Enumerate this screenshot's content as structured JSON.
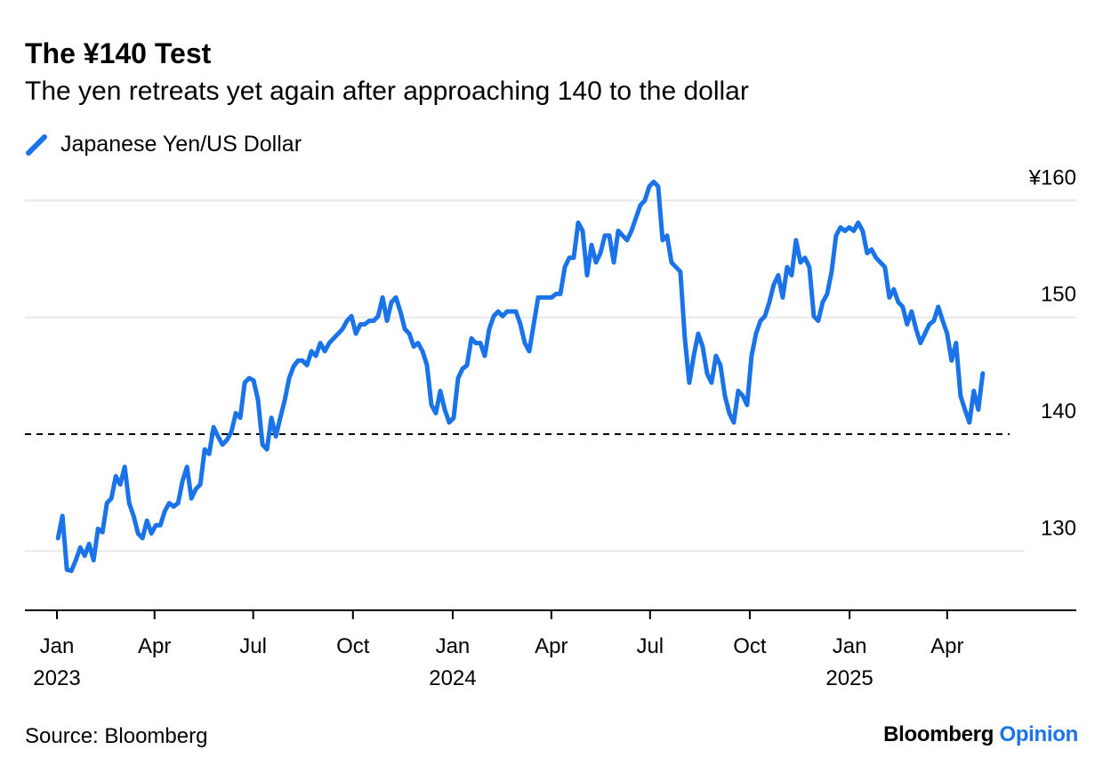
{
  "chart_data": {
    "type": "line",
    "title": "The ¥140 Test",
    "subtitle": "The yen retreats yet again after approaching 140 to the dollar",
    "legend": [
      "Japanese Yen/US Dollar"
    ],
    "legend_placement": "top-left",
    "source": "Source: Bloomberg",
    "brand": {
      "name": "Bloomberg",
      "suffix": "Opinion"
    },
    "colors": {
      "line": "#1a73e8",
      "grid": "#e8e8e8",
      "reference": "#000000",
      "brand_accent": "#1a73e8"
    },
    "ylim": [
      125,
      162
    ],
    "y_ticks": [
      {
        "value": 160,
        "label": "¥160"
      },
      {
        "value": 150,
        "label": "150"
      },
      {
        "value": 140,
        "label": "140"
      },
      {
        "value": 130,
        "label": "130"
      }
    ],
    "reference_line": {
      "value": 140,
      "style": "dashed"
    },
    "x_ticks": [
      {
        "day": 0,
        "label": "Jan",
        "year": "2023"
      },
      {
        "day": 90,
        "label": "Apr",
        "year": ""
      },
      {
        "day": 181,
        "label": "Jul",
        "year": ""
      },
      {
        "day": 273,
        "label": "Oct",
        "year": ""
      },
      {
        "day": 365,
        "label": "Jan",
        "year": "2024"
      },
      {
        "day": 456,
        "label": "Apr",
        "year": ""
      },
      {
        "day": 547,
        "label": "Jul",
        "year": ""
      },
      {
        "day": 639,
        "label": "Oct",
        "year": ""
      },
      {
        "day": 731,
        "label": "Jan",
        "year": "2025"
      },
      {
        "day": 821,
        "label": "Apr",
        "year": ""
      }
    ],
    "series": [
      {
        "name": "Japanese Yen/US Dollar",
        "start_day": 1,
        "step_days": 4.1,
        "values": [
          131.1,
          133.0,
          128.4,
          128.3,
          129.2,
          130.3,
          129.6,
          130.6,
          129.2,
          131.9,
          131.6,
          134.1,
          134.5,
          136.4,
          135.7,
          137.2,
          134.1,
          133.0,
          131.5,
          131.1,
          132.6,
          131.5,
          132.2,
          132.2,
          133.4,
          134.1,
          133.8,
          134.1,
          136.0,
          137.2,
          134.5,
          135.3,
          135.7,
          138.7,
          138.3,
          140.6,
          139.8,
          139.1,
          139.5,
          140.2,
          141.8,
          141.4,
          144.4,
          144.8,
          144.6,
          142.9,
          139.1,
          138.7,
          141.4,
          139.8,
          141.4,
          142.9,
          144.8,
          145.8,
          146.3,
          146.3,
          145.9,
          147.1,
          146.7,
          147.8,
          147.1,
          147.8,
          148.2,
          148.6,
          149.0,
          149.7,
          150.1,
          148.6,
          149.4,
          149.4,
          149.7,
          149.7,
          150.1,
          151.7,
          149.7,
          151.3,
          151.7,
          150.5,
          149.0,
          148.6,
          147.5,
          147.8,
          147.1,
          145.9,
          142.5,
          141.8,
          143.7,
          142.1,
          141.0,
          141.4,
          144.8,
          145.6,
          145.9,
          148.2,
          147.8,
          147.8,
          146.7,
          149.0,
          150.1,
          150.5,
          150.1,
          150.5,
          150.5,
          150.5,
          149.4,
          147.8,
          147.1,
          149.4,
          151.7,
          151.7,
          151.7,
          151.7,
          152.0,
          152.0,
          154.3,
          155.1,
          155.1,
          158.1,
          157.4,
          153.6,
          156.2,
          154.7,
          155.5,
          157.0,
          157.0,
          154.7,
          157.4,
          157.0,
          156.6,
          157.4,
          158.5,
          159.6,
          160.0,
          161.2,
          161.6,
          161.2,
          156.6,
          157.0,
          154.7,
          154.3,
          153.9,
          148.2,
          144.4,
          146.7,
          148.6,
          147.5,
          145.2,
          144.4,
          146.7,
          145.9,
          143.3,
          141.8,
          141.0,
          143.7,
          143.3,
          142.5,
          146.7,
          148.6,
          149.7,
          150.1,
          151.3,
          152.8,
          153.6,
          151.7,
          154.3,
          153.6,
          156.6,
          154.7,
          155.1,
          154.3,
          150.1,
          149.7,
          151.3,
          152.0,
          153.9,
          157.0,
          157.7,
          157.4,
          157.7,
          157.4,
          158.1,
          157.4,
          155.5,
          155.8,
          155.1,
          154.7,
          154.3,
          151.7,
          152.4,
          151.3,
          150.9,
          149.4,
          150.5,
          149.0,
          147.8,
          148.6,
          149.4,
          149.7,
          150.9,
          149.7,
          148.6,
          146.3,
          147.8,
          143.3,
          142.1,
          141.0,
          143.7,
          142.1,
          145.2
        ]
      }
    ]
  }
}
